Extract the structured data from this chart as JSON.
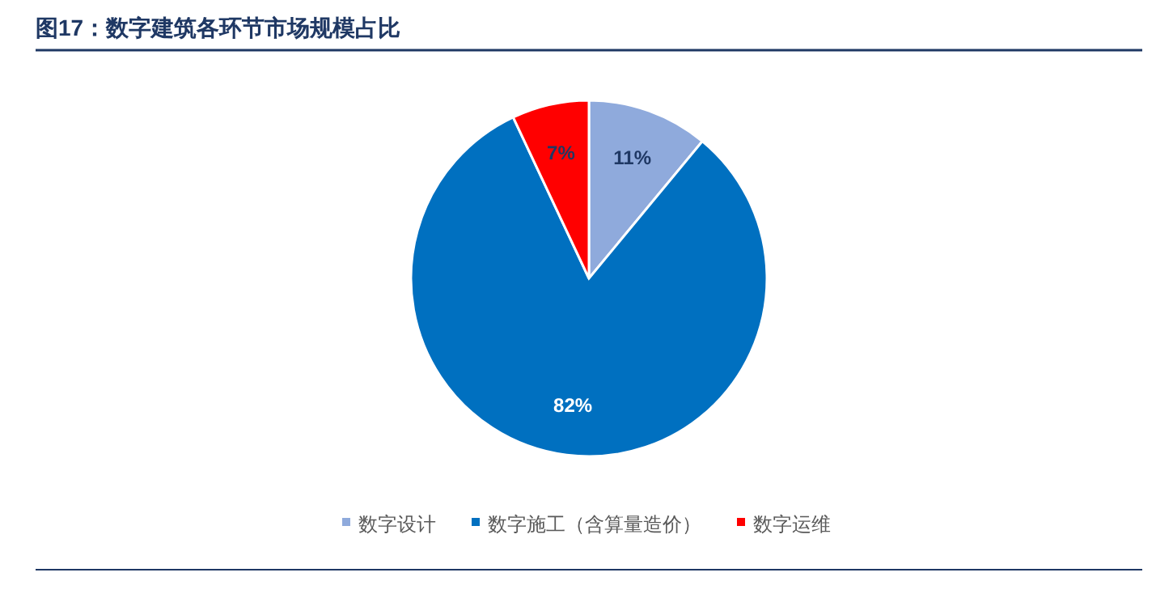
{
  "chart_data": {
    "type": "pie",
    "title": "图17：数字建筑各环节市场规模占比",
    "categories": [
      "数字设计",
      "数字施工（含算量造价）",
      "数字运维"
    ],
    "values": [
      11,
      82,
      7
    ],
    "value_labels": [
      "11%",
      "82%",
      "7%"
    ],
    "colors": [
      "#8faadc",
      "#0070c0",
      "#ff0000"
    ],
    "legend": "bottom"
  }
}
